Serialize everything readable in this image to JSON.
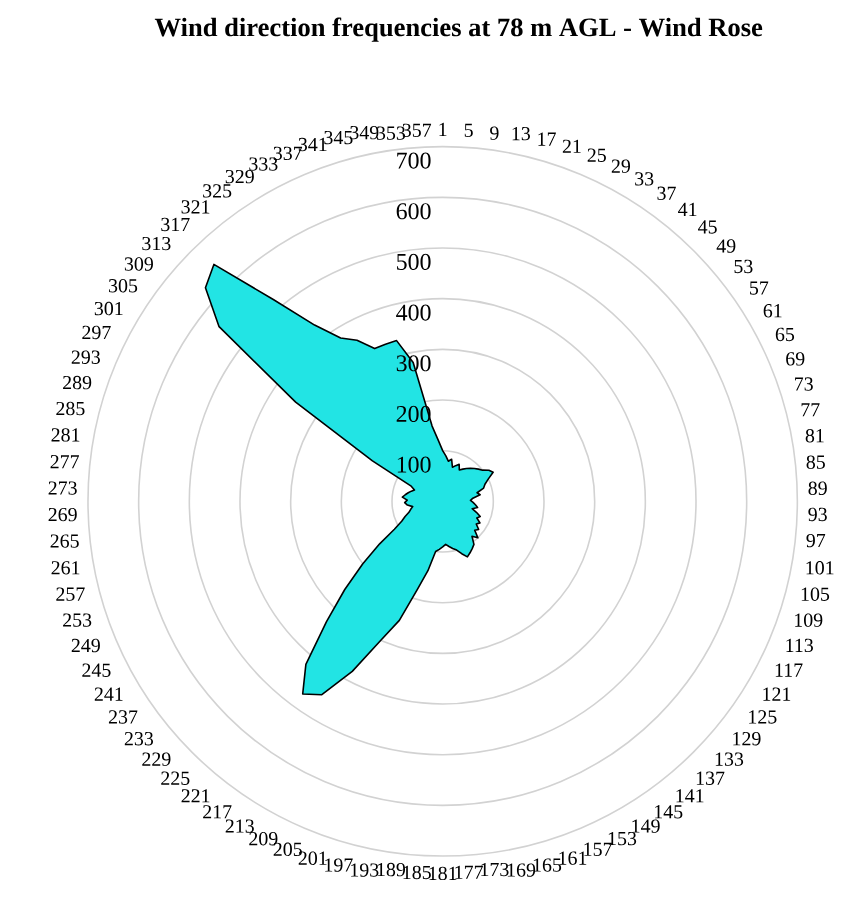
{
  "chart_data": {
    "type": "radar",
    "title": "Wind direction frequencies at 78 m AGL - Wind Rose",
    "categories": [
      "1",
      "5",
      "9",
      "13",
      "17",
      "21",
      "25",
      "29",
      "33",
      "37",
      "41",
      "45",
      "49",
      "53",
      "57",
      "61",
      "65",
      "69",
      "73",
      "77",
      "81",
      "85",
      "89",
      "93",
      "97",
      "101",
      "105",
      "109",
      "113",
      "117",
      "121",
      "125",
      "129",
      "133",
      "137",
      "141",
      "145",
      "149",
      "153",
      "157",
      "161",
      "165",
      "169",
      "173",
      "177",
      "181",
      "185",
      "189",
      "193",
      "197",
      "201",
      "205",
      "209",
      "213",
      "217",
      "221",
      "225",
      "229",
      "233",
      "237",
      "241",
      "245",
      "249",
      "253",
      "257",
      "261",
      "265",
      "269",
      "273",
      "277",
      "281",
      "285",
      "289",
      "293",
      "297",
      "301",
      "305",
      "309",
      "313",
      "317",
      "321",
      "325",
      "329",
      "333",
      "337",
      "341",
      "345",
      "349",
      "353",
      "357"
    ],
    "series": [
      {
        "color": "#22e4e4",
        "values": [
          100,
          90,
          80,
          85,
          70,
          75,
          80,
          70,
          75,
          80,
          85,
          90,
          95,
          100,
          110,
          115,
          100,
          90,
          85,
          70,
          75,
          60,
          55,
          60,
          65,
          70,
          60,
          70,
          80,
          75,
          85,
          80,
          90,
          85,
          100,
          90,
          105,
          110,
          115,
          120,
          110,
          100,
          95,
          90,
          85,
          90,
          95,
          100,
          140,
          180,
          250,
          300,
          380,
          450,
          470,
          420,
          330,
          260,
          200,
          150,
          110,
          90,
          80,
          70,
          65,
          60,
          70,
          75,
          70,
          80,
          75,
          70,
          65,
          60,
          70,
          160,
          350,
          560,
          630,
          650,
          520,
          430,
          380,
          360,
          330,
          330,
          330,
          280,
          150,
          120
        ]
      }
    ],
    "ylim": [
      0,
      700
    ],
    "yticks": [
      100,
      200,
      300,
      400,
      500,
      600,
      700
    ],
    "grid": "y"
  }
}
